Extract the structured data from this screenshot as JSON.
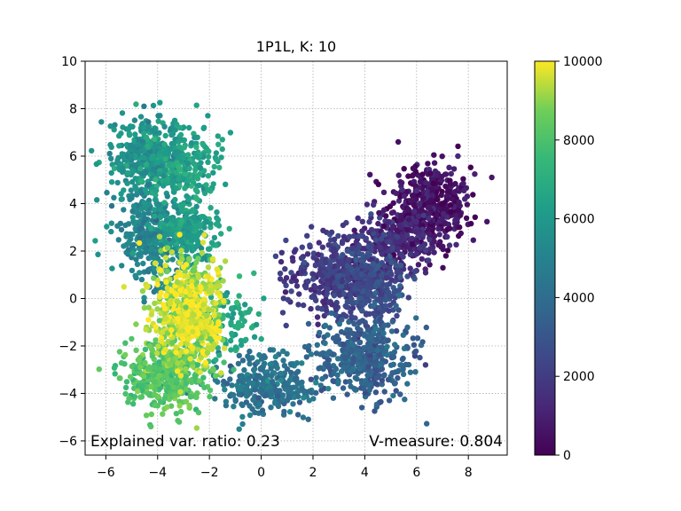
{
  "chart_data": {
    "type": "scatter",
    "title": "1P1L, K: 10",
    "xlabel": "",
    "ylabel": "",
    "xlim": [
      -6.8,
      9.5
    ],
    "ylim": [
      -6.6,
      10
    ],
    "xticks": [
      -6,
      -4,
      -2,
      0,
      2,
      4,
      6,
      8
    ],
    "yticks": [
      -6,
      -4,
      -2,
      0,
      2,
      4,
      6,
      8,
      10
    ],
    "xtick_labels": [
      "−6",
      "−4",
      "−2",
      "0",
      "2",
      "4",
      "6",
      "8"
    ],
    "ytick_labels": [
      "−6",
      "−4",
      "−2",
      "0",
      "2",
      "4",
      "6",
      "8",
      "10"
    ],
    "grid": true,
    "colormap": "viridis",
    "colorbar": {
      "range": [
        0,
        10000
      ],
      "ticks": [
        0,
        2000,
        4000,
        6000,
        8000,
        10000
      ],
      "tick_labels": [
        "0",
        "2000",
        "4000",
        "6000",
        "8000",
        "10000"
      ]
    },
    "annotations": {
      "explained_var": "Explained var. ratio: 0.23",
      "v_measure": "V-measure: 0.804"
    },
    "clusters": [
      {
        "center": [
          6.5,
          3.9
        ],
        "spread": [
          0.8,
          0.9
        ],
        "value": 500,
        "count": 420
      },
      {
        "center": [
          5.2,
          2.4
        ],
        "spread": [
          0.8,
          0.7
        ],
        "value": 1300,
        "count": 240
      },
      {
        "center": [
          3.0,
          1.0
        ],
        "spread": [
          1.0,
          0.9
        ],
        "value": 2000,
        "count": 380
      },
      {
        "center": [
          4.2,
          0.6
        ],
        "spread": [
          0.7,
          0.8
        ],
        "value": 2600,
        "count": 260
      },
      {
        "center": [
          4.0,
          -2.5
        ],
        "spread": [
          1.0,
          0.9
        ],
        "value": 3500,
        "count": 420
      },
      {
        "center": [
          0.2,
          -3.7
        ],
        "spread": [
          0.9,
          0.6
        ],
        "value": 4300,
        "count": 300
      },
      {
        "center": [
          -4.3,
          2.7
        ],
        "spread": [
          0.6,
          0.9
        ],
        "value": 5100,
        "count": 300
      },
      {
        "center": [
          -2.8,
          2.8
        ],
        "spread": [
          0.6,
          0.6
        ],
        "value": 6200,
        "count": 240
      },
      {
        "center": [
          -4.4,
          6.0
        ],
        "spread": [
          0.7,
          0.9
        ],
        "value": 5800,
        "count": 380
      },
      {
        "center": [
          -3.0,
          5.5
        ],
        "spread": [
          0.7,
          0.8
        ],
        "value": 6500,
        "count": 200
      },
      {
        "center": [
          -1.3,
          -1.0
        ],
        "spread": [
          0.6,
          0.8
        ],
        "value": 6800,
        "count": 100
      },
      {
        "center": [
          -3.7,
          -3.2
        ],
        "spread": [
          0.8,
          0.7
        ],
        "value": 8200,
        "count": 420
      },
      {
        "center": [
          -2.9,
          -0.7
        ],
        "spread": [
          0.7,
          1.3
        ],
        "value": 9000,
        "count": 340
      },
      {
        "center": [
          -2.7,
          -0.5
        ],
        "spread": [
          0.6,
          1.0
        ],
        "value": 9800,
        "count": 320
      }
    ]
  }
}
